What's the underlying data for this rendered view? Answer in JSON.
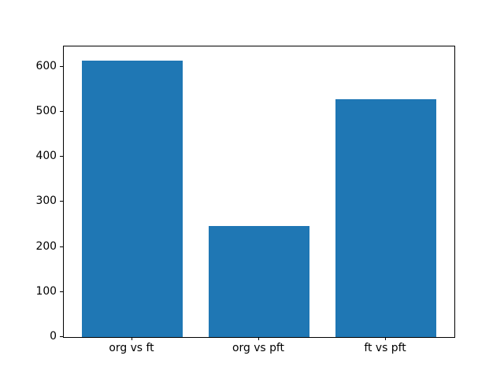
{
  "figure": {
    "background": "#ffffff",
    "title": ""
  },
  "chart_data": {
    "type": "bar",
    "categories": [
      "org vs ft",
      "org vs pft",
      "ft vs pft"
    ],
    "values": [
      614,
      247,
      528
    ],
    "title": "",
    "xlabel": "",
    "ylabel": "",
    "ylim": [
      0,
      645
    ],
    "xlim": [
      -0.54,
      2.54
    ],
    "yticks": [
      0,
      100,
      200,
      300,
      400,
      500,
      600
    ],
    "bar_color": "#1f77b4",
    "bar_width_fraction": 0.8,
    "grid": false,
    "legend_position": "none",
    "axes_color": "#000000",
    "tick_label_color": "#000000"
  }
}
